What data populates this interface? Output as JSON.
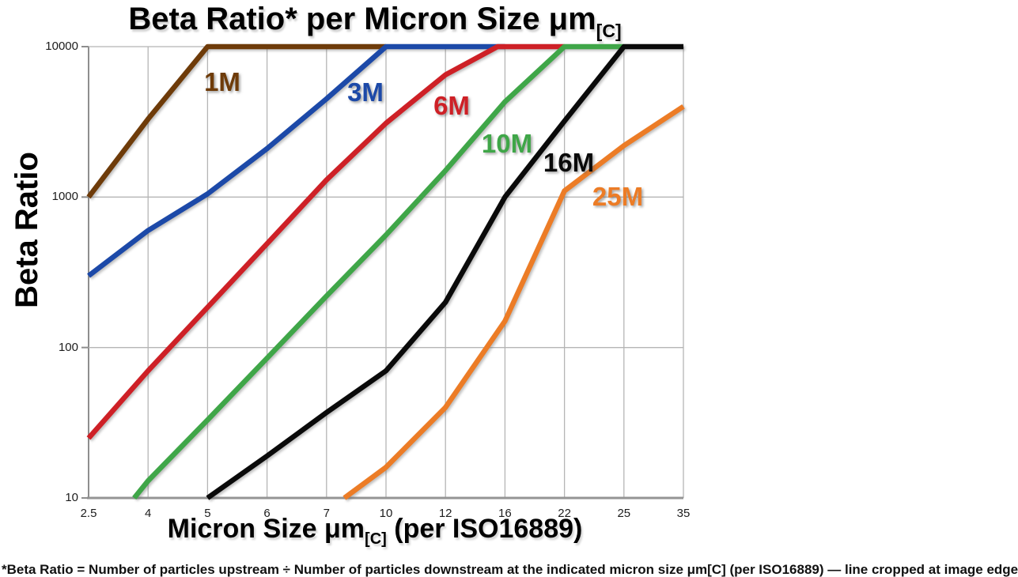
{
  "page": {
    "background": "#ffffff"
  },
  "chart_data": {
    "type": "line",
    "title_main": "Beta Ratio* per Micron Size μm",
    "title_subscript": "[C]",
    "xlabel_main": "Micron Size μm",
    "xlabel_subscript": "[C]",
    "xlabel_suffix": " (per ISO16889)",
    "ylabel": "Beta Ratio",
    "x_scale": "categorical-equal-spacing",
    "y_scale": "log",
    "x_ticks": [
      2.5,
      4,
      5,
      6,
      7,
      10,
      12,
      16,
      22,
      25,
      35
    ],
    "y_ticks": [
      10,
      100,
      1000,
      10000
    ],
    "ylim": [
      10,
      10000
    ],
    "grid": true,
    "legend_position": "inline-labels-on-lines",
    "colors": {
      "grid": "#b5b5b5",
      "axis": "#8e8e8e",
      "bottom_axis": "#949494",
      "title_text": "#000000",
      "tick_text": "#1c1c1c"
    },
    "series": [
      {
        "name": "1M",
        "color": "#6E3B09",
        "label_pos": {
          "x": 281,
          "y": 104
        },
        "points": [
          [
            2.5,
            1000
          ],
          [
            4,
            3300
          ],
          [
            5,
            10000
          ],
          [
            10,
            10000
          ]
        ]
      },
      {
        "name": "3M",
        "color": "#1C49A8",
        "label_pos": {
          "x": 462,
          "y": 117
        },
        "points": [
          [
            2.5,
            300
          ],
          [
            4,
            600
          ],
          [
            5,
            1050
          ],
          [
            6,
            2100
          ],
          [
            7,
            4500
          ],
          [
            10,
            10000
          ],
          [
            16,
            10000
          ]
        ]
      },
      {
        "name": "6M",
        "color": "#CE2026",
        "label_pos": {
          "x": 571,
          "y": 134
        },
        "points": [
          [
            2.5,
            25
          ],
          [
            4,
            70
          ],
          [
            5,
            185
          ],
          [
            6,
            490
          ],
          [
            7,
            1300
          ],
          [
            10,
            3100
          ],
          [
            12,
            6500
          ],
          [
            15.5,
            10000
          ],
          [
            22,
            10000
          ]
        ]
      },
      {
        "name": "10M",
        "color": "#3FA648",
        "label_pos": {
          "x": 641,
          "y": 182
        },
        "points": [
          [
            3.65,
            10
          ],
          [
            4,
            13
          ],
          [
            5,
            33
          ],
          [
            6,
            85
          ],
          [
            7,
            220
          ],
          [
            10,
            560
          ],
          [
            12,
            1500
          ],
          [
            16,
            4300
          ],
          [
            22,
            10000
          ],
          [
            25,
            10000
          ]
        ]
      },
      {
        "name": "16M",
        "color": "#0A0A0A",
        "label_pos": {
          "x": 719,
          "y": 206
        },
        "points": [
          [
            5,
            10
          ],
          [
            6,
            19
          ],
          [
            7,
            37
          ],
          [
            10,
            70
          ],
          [
            12,
            200
          ],
          [
            16,
            1000
          ],
          [
            22,
            3200
          ],
          [
            25,
            10000
          ],
          [
            35,
            10000
          ]
        ]
      },
      {
        "name": "25M",
        "color": "#EC7C26",
        "label_pos": {
          "x": 781,
          "y": 249
        },
        "points": [
          [
            7.9,
            10
          ],
          [
            10,
            16
          ],
          [
            12,
            40
          ],
          [
            16,
            150
          ],
          [
            22,
            1100
          ],
          [
            25,
            2200
          ],
          [
            35,
            4000
          ]
        ]
      }
    ]
  },
  "footnote_partial": "*Beta Ratio = Number of particles upstream ÷ Number of particles downstream at the indicated micron size μm[C] (per ISO16889) — line cropped at image edge"
}
